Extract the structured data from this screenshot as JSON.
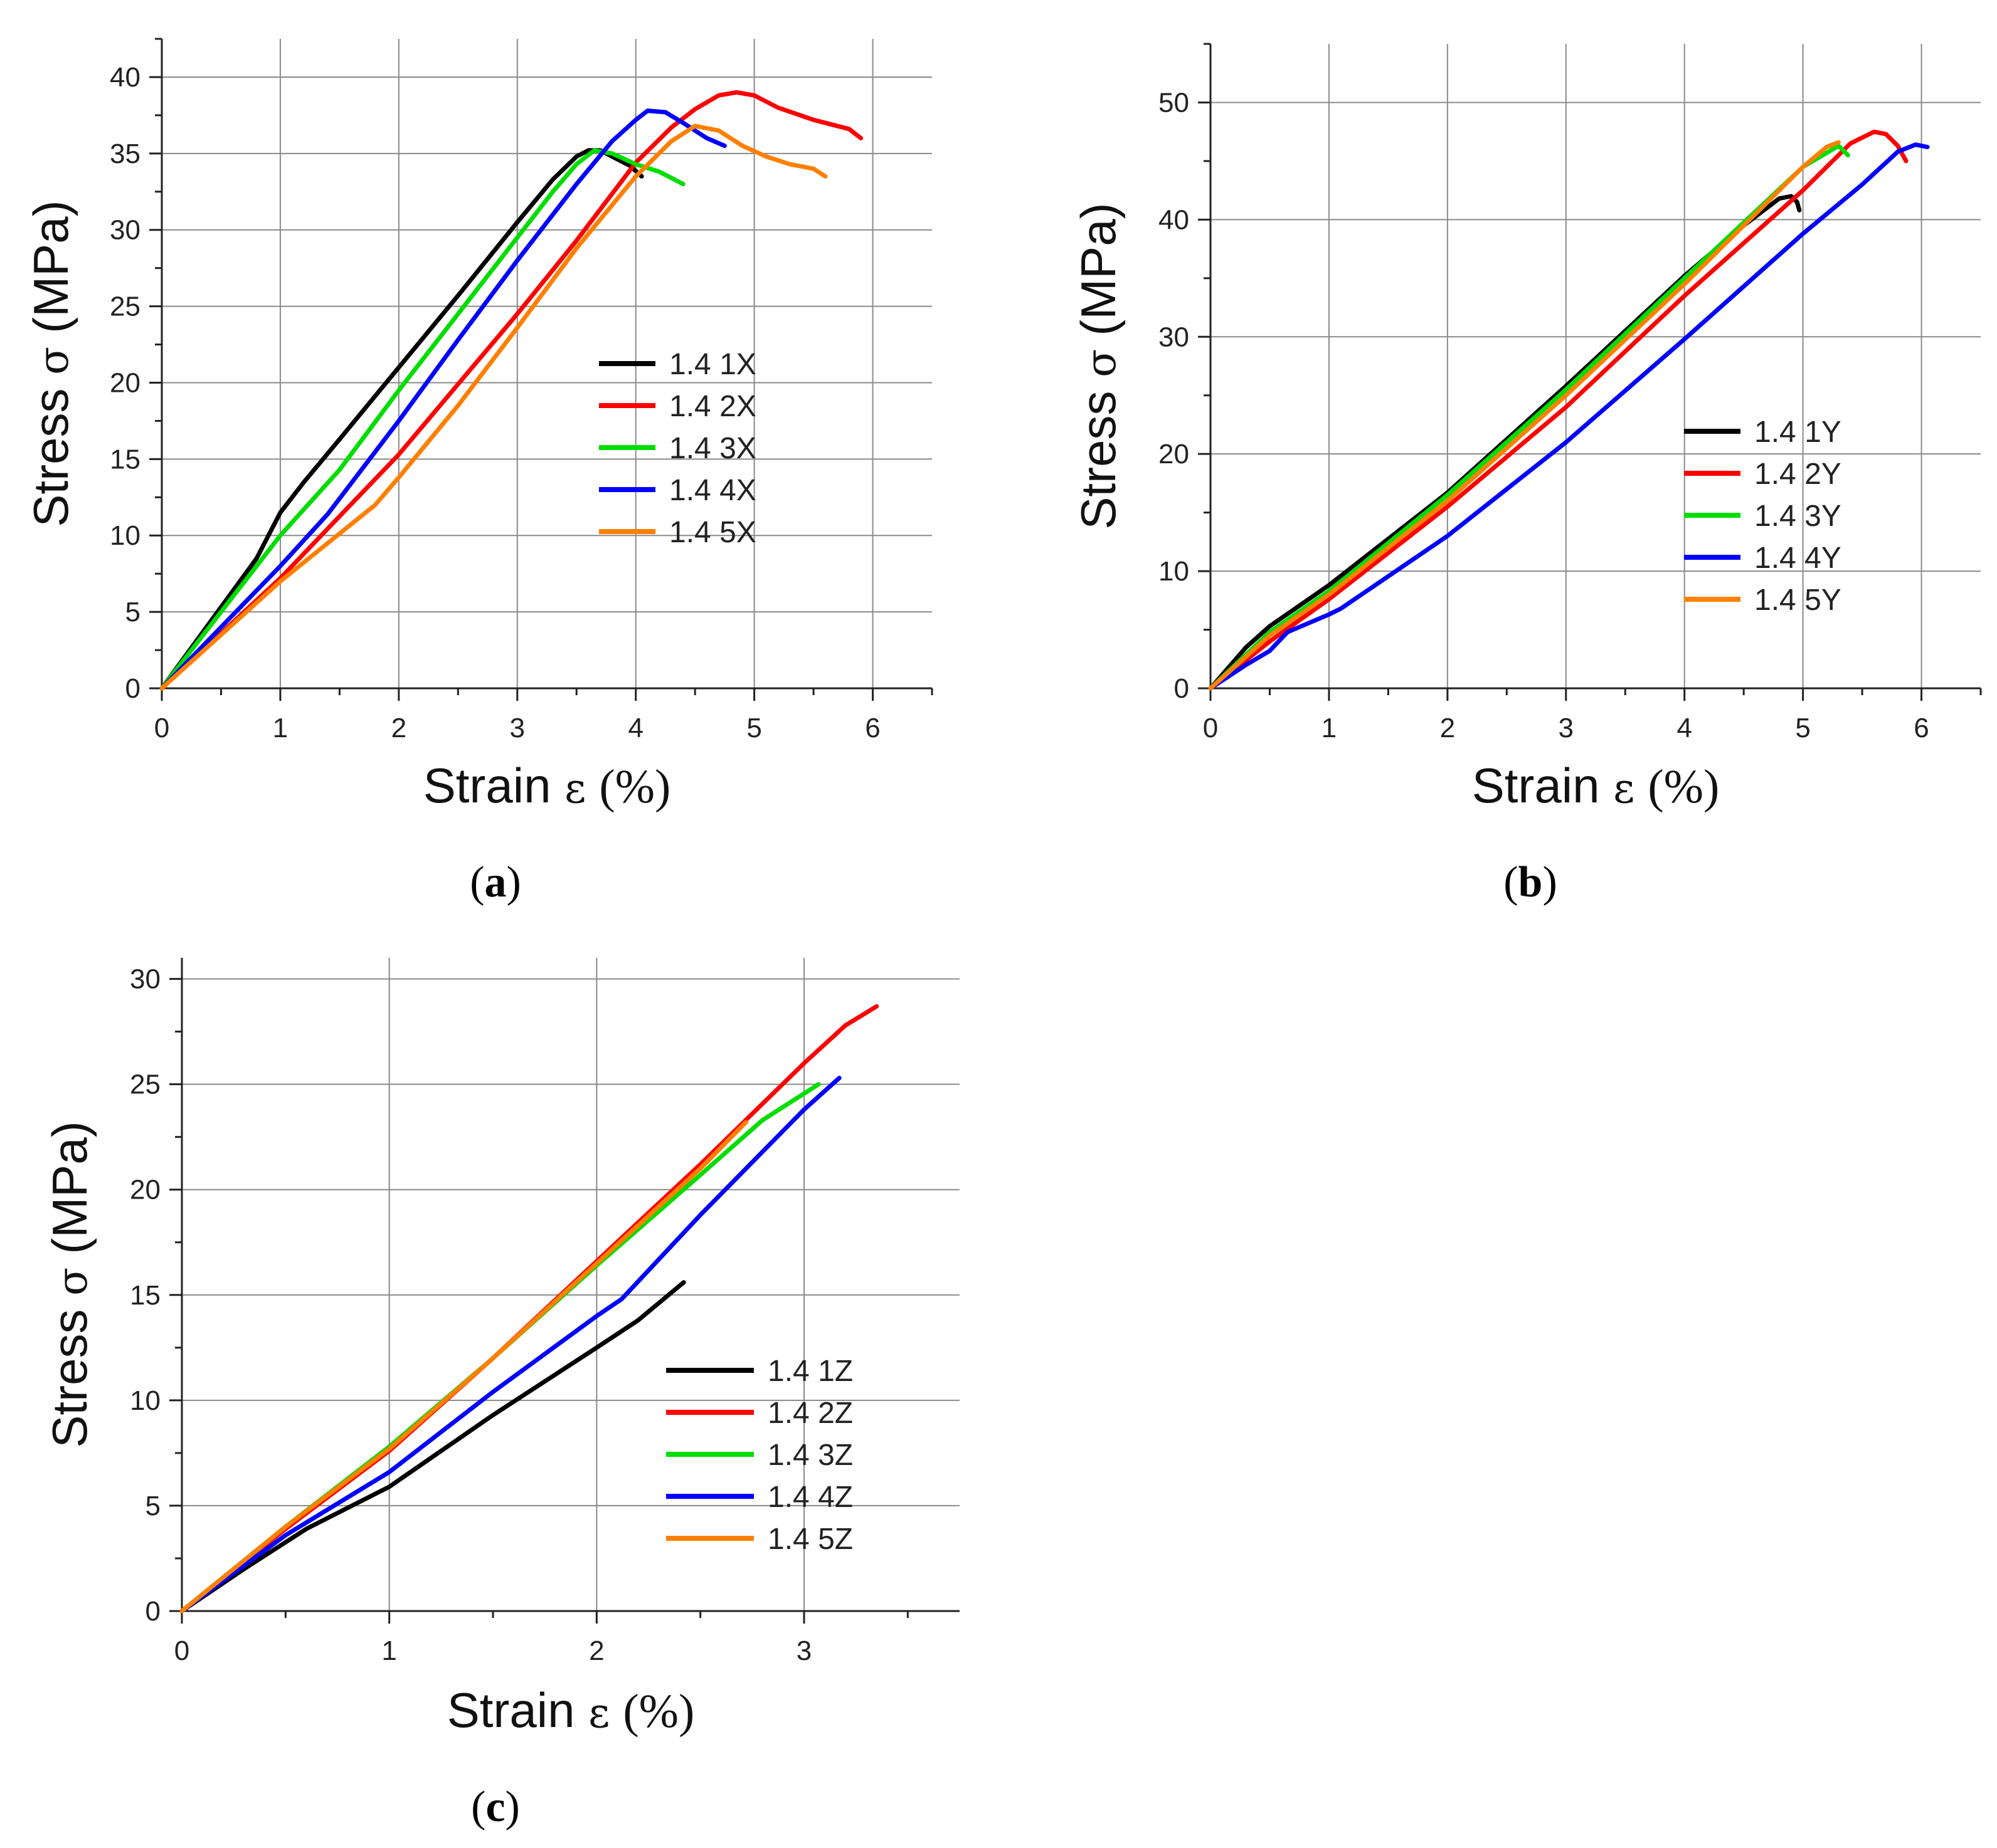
{
  "chart_data": [
    {
      "type": "line",
      "panel": "a",
      "caption_letter": "a",
      "xlabel": "Strain",
      "xlabel_symbol": "ε",
      "xlabel_unit": "(%)",
      "ylabel": "Stress",
      "ylabel_symbol": "σ",
      "ylabel_unit": "(MPa)",
      "xlim": [
        0,
        6.5
      ],
      "ylim": [
        0,
        42.5
      ],
      "xticks": [
        "0",
        "1",
        "2",
        "3",
        "4",
        "5",
        "6"
      ],
      "yticks": [
        "0",
        "5",
        "10",
        "15",
        "20",
        "25",
        "30",
        "35",
        "40"
      ],
      "grid": true,
      "legend_position": "center-right",
      "series": [
        {
          "name": "1.4 1X",
          "color": "#000000",
          "points": [
            [
              0,
              0
            ],
            [
              0.8,
              8.5
            ],
            [
              1,
              11.5
            ],
            [
              1.2,
              13.5
            ],
            [
              1.5,
              16.3
            ],
            [
              2,
              21
            ],
            [
              2.5,
              25.7
            ],
            [
              3,
              30.5
            ],
            [
              3.3,
              33.3
            ],
            [
              3.5,
              34.8
            ],
            [
              3.6,
              35.2
            ],
            [
              3.7,
              35.2
            ],
            [
              3.8,
              34.8
            ],
            [
              3.95,
              34.2
            ],
            [
              4.05,
              33.5
            ]
          ]
        },
        {
          "name": "1.4 2X",
          "color": "#ff0000",
          "points": [
            [
              0,
              0
            ],
            [
              1,
              7.2
            ],
            [
              2,
              15.3
            ],
            [
              3,
              24.5
            ],
            [
              3.5,
              29.3
            ],
            [
              4,
              34.4
            ],
            [
              4.3,
              36.7
            ],
            [
              4.5,
              37.9
            ],
            [
              4.7,
              38.8
            ],
            [
              4.85,
              39
            ],
            [
              5,
              38.8
            ],
            [
              5.2,
              38
            ],
            [
              5.5,
              37.2
            ],
            [
              5.8,
              36.6
            ],
            [
              5.9,
              36
            ]
          ]
        },
        {
          "name": "1.4 3X",
          "color": "#00dd00",
          "points": [
            [
              0,
              0
            ],
            [
              1,
              10
            ],
            [
              1.5,
              14.3
            ],
            [
              2,
              19.5
            ],
            [
              2.5,
              24.5
            ],
            [
              3,
              29.5
            ],
            [
              3.3,
              32.5
            ],
            [
              3.5,
              34.3
            ],
            [
              3.65,
              35.2
            ],
            [
              3.8,
              35
            ],
            [
              4,
              34.3
            ],
            [
              4.2,
              33.8
            ],
            [
              4.4,
              33
            ]
          ]
        },
        {
          "name": "1.4 4X",
          "color": "#0000ff",
          "points": [
            [
              0,
              0
            ],
            [
              1,
              8
            ],
            [
              1.4,
              11.4
            ],
            [
              2,
              17.5
            ],
            [
              2.5,
              22.8
            ],
            [
              3,
              28
            ],
            [
              3.5,
              33
            ],
            [
              3.8,
              35.8
            ],
            [
              4,
              37.2
            ],
            [
              4.1,
              37.8
            ],
            [
              4.25,
              37.7
            ],
            [
              4.4,
              37
            ],
            [
              4.6,
              36
            ],
            [
              4.75,
              35.5
            ]
          ]
        },
        {
          "name": "1.4 5X",
          "color": "#ff8000",
          "points": [
            [
              0,
              0
            ],
            [
              1,
              7
            ],
            [
              1.8,
              12
            ],
            [
              2,
              13.8
            ],
            [
              2.5,
              18.5
            ],
            [
              3,
              23.6
            ],
            [
              3.5,
              28.8
            ],
            [
              4,
              33.5
            ],
            [
              4.3,
              35.8
            ],
            [
              4.5,
              36.8
            ],
            [
              4.7,
              36.5
            ],
            [
              4.9,
              35.5
            ],
            [
              5.1,
              34.8
            ],
            [
              5.3,
              34.3
            ],
            [
              5.5,
              34
            ],
            [
              5.6,
              33.5
            ]
          ]
        }
      ]
    },
    {
      "type": "line",
      "panel": "b",
      "caption_letter": "b",
      "xlabel": "Strain",
      "xlabel_symbol": "ε",
      "xlabel_unit": "(%)",
      "ylabel": "Stress",
      "ylabel_symbol": "σ",
      "ylabel_unit": "(MPa)",
      "xlim": [
        0,
        6.5
      ],
      "ylim": [
        0,
        55
      ],
      "xticks": [
        "0",
        "1",
        "2",
        "3",
        "4",
        "5",
        "6"
      ],
      "yticks": [
        "0",
        "10",
        "20",
        "30",
        "40",
        "50"
      ],
      "grid": true,
      "legend_position": "center-right",
      "series": [
        {
          "name": "1.4 1Y",
          "color": "#000000",
          "points": [
            [
              0,
              0
            ],
            [
              0.3,
              3.5
            ],
            [
              0.5,
              5.3
            ],
            [
              1,
              8.8
            ],
            [
              2,
              16.7
            ],
            [
              3,
              25.8
            ],
            [
              4,
              35.2
            ],
            [
              4.5,
              39.5
            ],
            [
              4.8,
              41.8
            ],
            [
              4.9,
              42
            ],
            [
              4.95,
              41.5
            ],
            [
              4.97,
              40.8
            ]
          ]
        },
        {
          "name": "1.4 2Y",
          "color": "#ff0000",
          "points": [
            [
              0,
              0
            ],
            [
              0.5,
              4
            ],
            [
              1,
              7.6
            ],
            [
              2,
              15.5
            ],
            [
              3,
              24
            ],
            [
              4,
              33.5
            ],
            [
              5,
              42.5
            ],
            [
              5.4,
              46.5
            ],
            [
              5.6,
              47.5
            ],
            [
              5.7,
              47.3
            ],
            [
              5.8,
              46.3
            ],
            [
              5.87,
              45
            ]
          ]
        },
        {
          "name": "1.4 3Y",
          "color": "#00dd00",
          "points": [
            [
              0,
              0
            ],
            [
              0.5,
              4.8
            ],
            [
              1,
              8.3
            ],
            [
              2,
              16.5
            ],
            [
              3,
              25.5
            ],
            [
              4,
              35
            ],
            [
              5,
              44.5
            ],
            [
              5.3,
              46.3
            ],
            [
              5.38,
              45.5
            ]
          ]
        },
        {
          "name": "1.4 4Y",
          "color": "#0000ff",
          "points": [
            [
              0,
              0
            ],
            [
              0.3,
              2
            ],
            [
              0.5,
              3.2
            ],
            [
              0.65,
              4.8
            ],
            [
              1,
              6.3
            ],
            [
              1.1,
              6.8
            ],
            [
              2,
              13
            ],
            [
              3,
              21
            ],
            [
              4,
              29.8
            ],
            [
              5,
              38.8
            ],
            [
              5.5,
              43
            ],
            [
              5.8,
              45.8
            ],
            [
              5.95,
              46.4
            ],
            [
              6.05,
              46.2
            ]
          ]
        },
        {
          "name": "1.4 5Y",
          "color": "#ff8000",
          "points": [
            [
              0,
              0
            ],
            [
              0.5,
              4.5
            ],
            [
              1,
              8
            ],
            [
              2,
              16
            ],
            [
              3,
              25
            ],
            [
              4,
              34.5
            ],
            [
              4.5,
              39.5
            ],
            [
              5,
              44.5
            ],
            [
              5.2,
              46.2
            ],
            [
              5.3,
              46.6
            ]
          ]
        }
      ]
    },
    {
      "type": "line",
      "panel": "c",
      "caption_letter": "c",
      "xlabel": "Strain",
      "xlabel_symbol": "ε",
      "xlabel_unit": "(%)",
      "ylabel": "Stress",
      "ylabel_symbol": "σ",
      "ylabel_unit": "(MPa)",
      "xlim": [
        0,
        3.75
      ],
      "ylim": [
        0,
        31
      ],
      "xticks": [
        "0",
        "1",
        "2",
        "3"
      ],
      "yticks": [
        "0",
        "5",
        "10",
        "15",
        "20",
        "25",
        "30"
      ],
      "grid": true,
      "legend_position": "center-right",
      "series": [
        {
          "name": "1.4 1Z",
          "color": "#000000",
          "points": [
            [
              0,
              0
            ],
            [
              0.3,
              2
            ],
            [
              0.6,
              3.9
            ],
            [
              1,
              5.9
            ],
            [
              1.5,
              9.3
            ],
            [
              2,
              12.5
            ],
            [
              2.2,
              13.8
            ],
            [
              2.42,
              15.6
            ]
          ]
        },
        {
          "name": "1.4 2Z",
          "color": "#ff0000",
          "points": [
            [
              0,
              0
            ],
            [
              0.5,
              3.9
            ],
            [
              1,
              7.6
            ],
            [
              1.5,
              12
            ],
            [
              2,
              16.6
            ],
            [
              2.5,
              21.2
            ],
            [
              3,
              26
            ],
            [
              3.2,
              27.8
            ],
            [
              3.35,
              28.7
            ]
          ]
        },
        {
          "name": "1.4 3Z",
          "color": "#00dd00",
          "points": [
            [
              0,
              0
            ],
            [
              0.5,
              4
            ],
            [
              1,
              7.8
            ],
            [
              1.5,
              12
            ],
            [
              2,
              16.4
            ],
            [
              2.5,
              20.7
            ],
            [
              2.8,
              23.3
            ],
            [
              3.07,
              25
            ]
          ]
        },
        {
          "name": "1.4 4Z",
          "color": "#0000ff",
          "points": [
            [
              0,
              0
            ],
            [
              0.5,
              3.6
            ],
            [
              1,
              6.6
            ],
            [
              1.5,
              10.4
            ],
            [
              2,
              14
            ],
            [
              2.12,
              14.8
            ],
            [
              2.5,
              18.8
            ],
            [
              3,
              23.8
            ],
            [
              3.17,
              25.3
            ]
          ]
        },
        {
          "name": "1.4 5Z",
          "color": "#ff8000",
          "points": [
            [
              0,
              0
            ],
            [
              0.5,
              4
            ],
            [
              1,
              7.7
            ],
            [
              1.5,
              12
            ],
            [
              2,
              16.5
            ],
            [
              2.5,
              21
            ],
            [
              2.72,
              23.2
            ]
          ]
        }
      ]
    }
  ]
}
